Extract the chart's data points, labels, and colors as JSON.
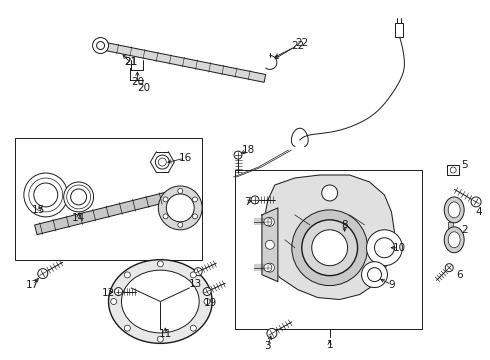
{
  "background_color": "#ffffff",
  "line_color": "#1a1a1a",
  "fig_width": 4.9,
  "fig_height": 3.6,
  "dpi": 100,
  "shaft_color": "#cccccc",
  "box_fill": "#ffffff",
  "housing_fill": "#e8e8e8"
}
